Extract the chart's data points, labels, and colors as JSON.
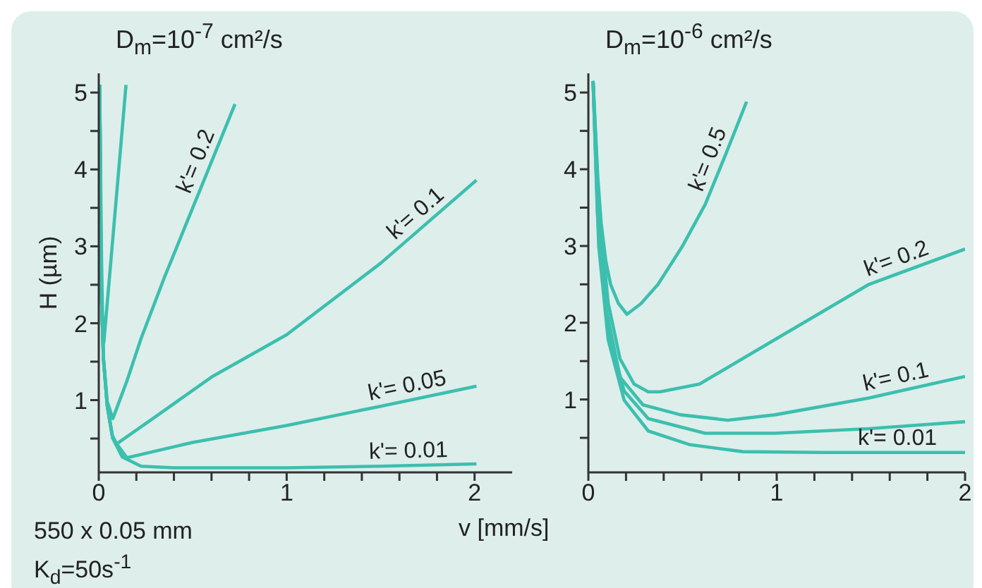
{
  "chart_data": [
    {
      "type": "line",
      "title": "D$_{m}$=10$^{-7}$ cm²/s",
      "xlabel": "v [mm/s]",
      "ylabel": "H (µm)",
      "annotations": [
        "550 x 0.05 mm",
        "K$_{d}$=50s$^{-1}$"
      ],
      "xlim": [
        0,
        2.2
      ],
      "ylim": [
        0.06,
        5.25
      ],
      "xticks": [
        0,
        {
          "value": 0.2,
          "label": null
        },
        {
          "value": 0.4,
          "label": null
        },
        {
          "value": 0.6,
          "label": null
        },
        {
          "value": 0.8,
          "label": null
        },
        1,
        {
          "value": 1.2,
          "label": null
        },
        {
          "value": 1.4,
          "label": null
        },
        {
          "value": 1.6,
          "label": null
        },
        {
          "value": 1.8,
          "label": null
        },
        2
      ],
      "yticks": [
        {
          "value": 0.5,
          "label": null
        },
        1,
        {
          "value": 1.5,
          "label": null
        },
        2,
        {
          "value": 2.5,
          "label": null
        },
        3,
        {
          "value": 3.5,
          "label": null
        },
        4,
        {
          "value": 4.5,
          "label": null
        },
        5
      ],
      "grid": false,
      "marker": "none",
      "line_style": "solid",
      "series": [
        {
          "color": "#3cbfae",
          "x": [
            0.005,
            0.01,
            0.015,
            0.02,
            0.027,
            0.05,
            0.08,
            0.11,
            0.145
          ],
          "values": [
            5.1,
            3.9,
            2.8,
            2.1,
            1.75,
            2.4,
            3.25,
            4.1,
            5.1
          ]
        },
        {
          "name": "k'= 0.2",
          "color": "#3cbfae",
          "x": [
            0.005,
            0.0125,
            0.025,
            0.045,
            0.075,
            0.15,
            0.225,
            0.35,
            0.475,
            0.6,
            0.725
          ],
          "values": [
            5.1,
            2.5,
            1.55,
            0.98,
            0.76,
            1.25,
            1.8,
            2.6,
            3.35,
            4.1,
            4.85
          ]
        },
        {
          "name": "k'= 0.1",
          "color": "#3cbfae",
          "x": [
            0.005,
            0.0125,
            0.025,
            0.045,
            0.07,
            0.095,
            0.3,
            0.6,
            1,
            1.5,
            2.01
          ],
          "values": [
            5.1,
            2.5,
            1.53,
            0.93,
            0.55,
            0.43,
            0.78,
            1.3,
            1.85,
            2.78,
            3.86
          ]
        },
        {
          "name": "k'= 0.05",
          "color": "#3cbfae",
          "x": [
            0.005,
            0.0125,
            0.025,
            0.045,
            0.075,
            0.15,
            0.5,
            1,
            1.5,
            2.01
          ],
          "values": [
            5.1,
            2.5,
            1.53,
            0.93,
            0.5,
            0.25,
            0.45,
            0.67,
            0.92,
            1.18
          ]
        },
        {
          "name": "k'= 0.01",
          "color": "#3cbfae",
          "x": [
            0.005,
            0.0125,
            0.025,
            0.045,
            0.075,
            0.125,
            0.225,
            0.4,
            1,
            1.5,
            2.01
          ],
          "values": [
            5.1,
            2.5,
            1.53,
            0.93,
            0.5,
            0.26,
            0.14,
            0.12,
            0.12,
            0.14,
            0.17
          ]
        }
      ]
    },
    {
      "type": "line",
      "title": "D$_{m}$=10$^{-6}$ cm²/s",
      "xlim": [
        0,
        2
      ],
      "ylim": [
        0.05,
        5.25
      ],
      "xticks": [
        0,
        {
          "value": 0.2,
          "label": null
        },
        {
          "value": 0.4,
          "label": null
        },
        {
          "value": 0.6,
          "label": null
        },
        {
          "value": 0.8,
          "label": null
        },
        1,
        {
          "value": 1.2,
          "label": null
        },
        {
          "value": 1.4,
          "label": null
        },
        {
          "value": 1.6,
          "label": null
        },
        {
          "value": 1.8,
          "label": null
        },
        2
      ],
      "yticks": [
        {
          "value": 0.5,
          "label": null
        },
        1,
        {
          "value": 1.5,
          "label": null
        },
        2,
        {
          "value": 2.5,
          "label": null
        },
        3,
        {
          "value": 3.5,
          "label": null
        },
        4,
        {
          "value": 4.5,
          "label": null
        },
        5
      ],
      "grid": false,
      "marker": "none",
      "line_style": "solid",
      "series": [
        {
          "name": "k'= 0.5",
          "color": "#3cbfae",
          "x": [
            0.025,
            0.05,
            0.068,
            0.093,
            0.118,
            0.16,
            0.205,
            0.28,
            0.37,
            0.5,
            0.62,
            0.73,
            0.84
          ],
          "values": [
            5.15,
            3.9,
            3.3,
            2.8,
            2.5,
            2.25,
            2.11,
            2.25,
            2.5,
            3,
            3.54,
            4.2,
            4.88
          ]
        },
        {
          "name": "k'= 0.2",
          "color": "#3cbfae",
          "x": [
            0.025,
            0.055,
            0.105,
            0.168,
            0.243,
            0.318,
            0.38,
            0.59,
            0.99,
            1.49,
            2
          ],
          "values": [
            5.15,
            3.54,
            2.26,
            1.53,
            1.2,
            1.1,
            1.1,
            1.2,
            1.78,
            2.5,
            2.96
          ]
        },
        {
          "name": "k'= 0.1",
          "color": "#3cbfae",
          "x": [
            0.025,
            0.048,
            0.093,
            0.168,
            0.29,
            0.49,
            0.74,
            0.99,
            1.49,
            2
          ],
          "values": [
            5.15,
            3.42,
            2.2,
            1.29,
            0.93,
            0.8,
            0.73,
            0.8,
            1.02,
            1.3
          ]
        },
        {
          "color": "#3cbfae",
          "x": [
            0.025,
            0.055,
            0.105,
            0.19,
            0.318,
            0.62,
            0.99,
            1.49,
            2
          ],
          "values": [
            5.15,
            3.1,
            1.9,
            1.11,
            0.75,
            0.56,
            0.56,
            0.62,
            0.71
          ]
        },
        {
          "name": "k'= 0.01",
          "color": "#3cbfae",
          "x": [
            0.025,
            0.055,
            0.105,
            0.19,
            0.318,
            0.54,
            0.82,
            1.24,
            2
          ],
          "values": [
            5.15,
            3,
            1.78,
            0.99,
            0.59,
            0.41,
            0.32,
            0.31,
            0.31
          ]
        }
      ]
    }
  ]
}
